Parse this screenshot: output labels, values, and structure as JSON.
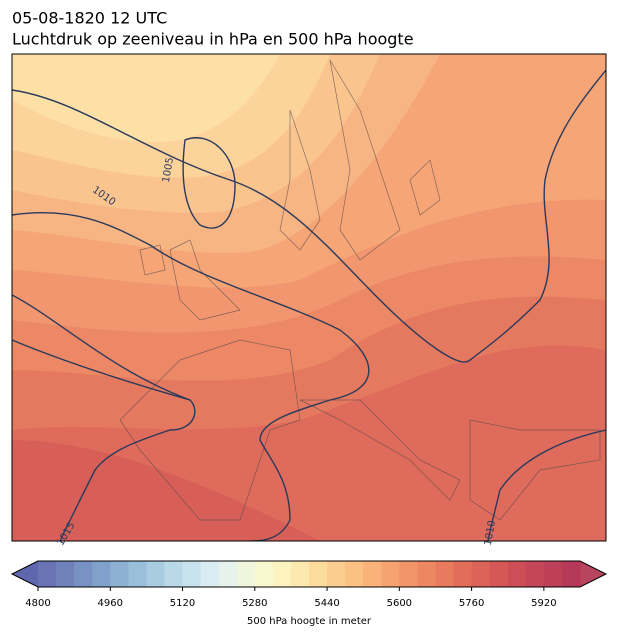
{
  "header": {
    "date": "05-08-1820 12 UTC",
    "title": "Luchtdruk op zeeniveau in hPa en 500 hPa hoogte"
  },
  "map": {
    "contour_labels": [
      "1010",
      "1005",
      "1015",
      "1010"
    ]
  },
  "colorbar": {
    "range": [
      4800,
      6000
    ],
    "ticks": [
      4800,
      4960,
      5120,
      5280,
      5440,
      5600,
      5760,
      5920
    ],
    "label": "500 hPa hoogte in meter",
    "under_color": "#5f66ae",
    "over_color": "#b9445e",
    "colors": [
      "#6b73b5",
      "#7182bb",
      "#7892c3",
      "#80a1ca",
      "#8cb1d2",
      "#9abfda",
      "#a9cce1",
      "#b9d9e8",
      "#c9e3ee",
      "#d9ecf1",
      "#e6f2eb",
      "#f0f6dd",
      "#f8f8cf",
      "#fdf3c0",
      "#fde9ae",
      "#fcdc9d",
      "#fbce8f",
      "#fac084",
      "#f8b27a",
      "#f6a371",
      "#f29569",
      "#ed8762",
      "#e87a5d",
      "#e26e59",
      "#dc6357",
      "#d55856",
      "#cd4e56",
      "#c54657",
      "#bd3f58",
      "#b53959"
    ]
  }
}
